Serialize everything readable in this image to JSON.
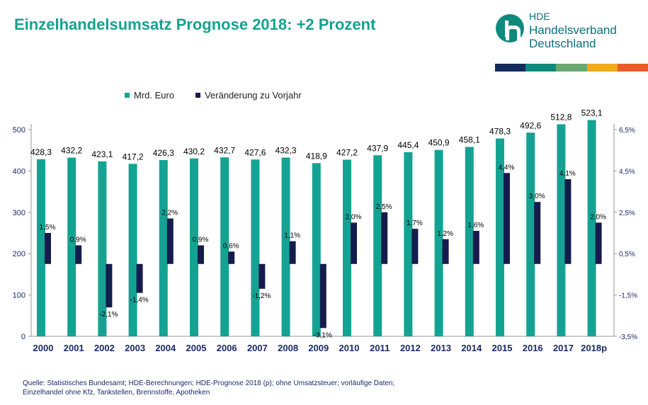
{
  "header": {
    "title": "Einzelhandelsumsatz Prognose 2018: +2 Prozent"
  },
  "logo": {
    "abbr": "HDE",
    "line1": "Handelsverband",
    "line2": "Deutschland",
    "icon": "hde-logo-icon"
  },
  "color_strip": [
    "#142a5c",
    "#0e8a7d",
    "#6aaa70",
    "#f2a91f",
    "#ec5a2a"
  ],
  "colors": {
    "bars": "#14a393",
    "change": "#151b4c"
  },
  "footer": {
    "line1": "Quelle: Statistisches Bundesamt; HDE-Berechnungen; HDE-Prognose 2018 (p); ohne Umsatzsteuer; vorläufige Daten;",
    "line2": "Einzelhandel ohne Kfz, Tankstellen, Brennstoffe, Apotheken"
  },
  "chart_data": {
    "type": "bar",
    "categories": [
      "2000",
      "2001",
      "2002",
      "2003",
      "2004",
      "2005",
      "2006",
      "2007",
      "2008",
      "2009",
      "2010",
      "2011",
      "2012",
      "2013",
      "2014",
      "2015",
      "2016",
      "2017",
      "2018p"
    ],
    "series": [
      {
        "name": "Mrd. Euro",
        "axis": "left",
        "values": [
          428.3,
          432.2,
          423.1,
          417.2,
          426.3,
          430.2,
          432.7,
          427.6,
          432.3,
          418.9,
          427.2,
          437.9,
          445.4,
          450.9,
          458.1,
          478.3,
          492.6,
          512.8,
          523.1
        ],
        "labels": [
          "428,3",
          "432,2",
          "423,1",
          "417,2",
          "426,3",
          "430,2",
          "432,7",
          "427,6",
          "432,3",
          "418,9",
          "427,2",
          "437,9",
          "445,4",
          "450,9",
          "458,1",
          "478,3",
          "492,6",
          "512,8",
          "523,1"
        ]
      },
      {
        "name": "Veränderung zu Vorjahr",
        "axis": "right",
        "values": [
          1.5,
          0.9,
          -2.1,
          -1.4,
          2.2,
          0.9,
          0.6,
          -1.2,
          1.1,
          -3.1,
          2.0,
          2.5,
          1.7,
          1.2,
          1.6,
          4.4,
          3.0,
          4.1,
          2.0
        ],
        "labels": [
          "1,5%",
          "0,9%",
          "-2,1%",
          "-1,4%",
          "2,2%",
          "0,9%",
          "0,6%",
          "-1,2%",
          "1,1%",
          "-3,1%",
          "2,0%",
          "2,5%",
          "1,7%",
          "1,2%",
          "1,6%",
          "4,4%",
          "3,0%",
          "4,1%",
          "2,0%"
        ]
      }
    ],
    "y_left": {
      "min": 0,
      "max": 500,
      "ticks": [
        "0",
        "100",
        "200",
        "300",
        "400",
        "500"
      ]
    },
    "y_right": {
      "min": -3.5,
      "max": 6.5,
      "ticks": [
        "-3,5%",
        "-1,5%",
        "0,5%",
        "2,5%",
        "4,5%",
        "6,5%"
      ]
    },
    "y_right_range": [
      -3.5,
      6.5
    ],
    "grid": false,
    "legend": "top-left"
  }
}
